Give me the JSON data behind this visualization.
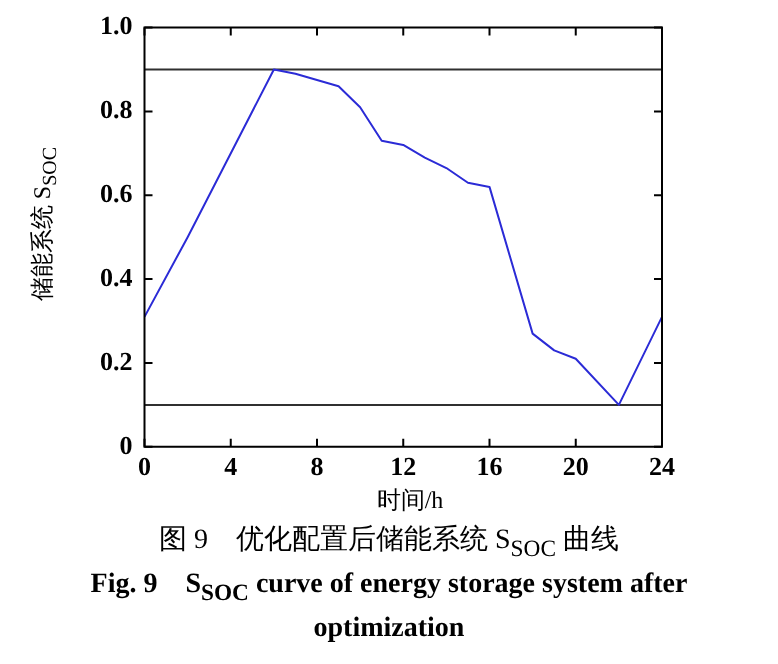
{
  "chart_data": {
    "type": "line",
    "xlabel": "时间/h",
    "ylabel": "储能系统 S$_{SOC}$",
    "x": [
      0,
      2,
      6,
      7,
      9,
      10,
      11,
      12,
      13,
      14,
      15,
      16,
      18,
      19,
      20,
      22,
      24
    ],
    "series": [
      {
        "color": "#2b2bd6",
        "values": [
          0.31,
          0.5,
          0.9,
          0.89,
          0.86,
          0.81,
          0.73,
          0.72,
          0.69,
          0.665,
          0.63,
          0.62,
          0.27,
          0.23,
          0.21,
          0.1,
          0.31
        ]
      }
    ],
    "xlim": [
      0,
      24
    ],
    "xticks": [
      0,
      4,
      8,
      12,
      16,
      20,
      24
    ],
    "ylim": [
      0,
      1
    ],
    "yticks": [
      0,
      0.2,
      0.4,
      0.6,
      0.8,
      {
        "value": 1,
        "label": "1.0"
      }
    ],
    "ref_lines": [
      {
        "axis": "y",
        "value": 0.9,
        "color": "#303030"
      },
      {
        "axis": "y",
        "value": 0.1,
        "color": "#303030"
      }
    ],
    "grid": false,
    "legend": false,
    "marker": "none",
    "line_style": "solid",
    "annotations": [
      "图 9　优化配置后储能系统 S$_{SOC}$ 曲线",
      "Fig. 9　S$_{SOC}$ curve of energy storage system after optimization"
    ]
  }
}
